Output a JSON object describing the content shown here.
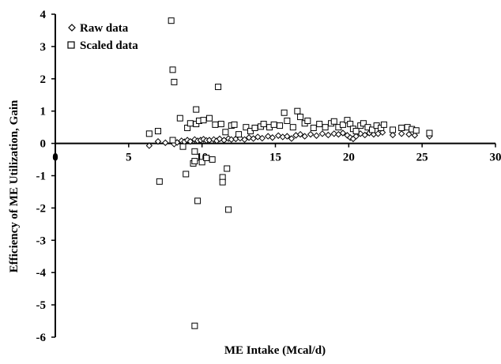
{
  "chart_data": {
    "type": "scatter",
    "xlabel": "ME Intake (Mcal/d)",
    "ylabel": "Efficiency of ME Utilization, Gain",
    "xlim": [
      0,
      30
    ],
    "ylim": [
      -6,
      4
    ],
    "x_ticks": [
      0,
      5,
      10,
      15,
      20,
      25,
      30
    ],
    "y_ticks": [
      4,
      3,
      2,
      1,
      0,
      -1,
      -2,
      -3,
      -4,
      -5,
      -6
    ],
    "grid": false,
    "legend_position": "top-left",
    "series": [
      {
        "name": "Raw data",
        "marker": "diamond",
        "color": "#000000",
        "points": [
          [
            6.4,
            -0.07
          ],
          [
            7.0,
            0.06
          ],
          [
            7.5,
            0.02
          ],
          [
            8.0,
            0.05
          ],
          [
            8.1,
            -0.02
          ],
          [
            8.3,
            0.03
          ],
          [
            8.6,
            0.08
          ],
          [
            8.8,
            0.05
          ],
          [
            9.0,
            0.1
          ],
          [
            9.2,
            0.06
          ],
          [
            9.5,
            0.12
          ],
          [
            9.7,
            0.08
          ],
          [
            9.9,
            0.1
          ],
          [
            10.1,
            0.13
          ],
          [
            10.3,
            0.09
          ],
          [
            10.5,
            0.1
          ],
          [
            10.8,
            0.12
          ],
          [
            11.0,
            0.08
          ],
          [
            11.2,
            0.14
          ],
          [
            11.5,
            0.1
          ],
          [
            11.8,
            0.15
          ],
          [
            12.0,
            0.12
          ],
          [
            12.3,
            0.14
          ],
          [
            12.6,
            0.16
          ],
          [
            12.9,
            0.12
          ],
          [
            13.2,
            0.18
          ],
          [
            13.5,
            0.15
          ],
          [
            13.8,
            0.2
          ],
          [
            14.1,
            0.16
          ],
          [
            14.5,
            0.22
          ],
          [
            14.8,
            0.18
          ],
          [
            15.2,
            0.24
          ],
          [
            15.5,
            0.2
          ],
          [
            15.8,
            0.22
          ],
          [
            16.1,
            0.15
          ],
          [
            16.4,
            0.25
          ],
          [
            16.7,
            0.28
          ],
          [
            17.0,
            0.22
          ],
          [
            17.4,
            0.28
          ],
          [
            17.8,
            0.24
          ],
          [
            18.2,
            0.3
          ],
          [
            18.6,
            0.26
          ],
          [
            19.0,
            0.3
          ],
          [
            19.3,
            0.28
          ],
          [
            19.6,
            0.32
          ],
          [
            19.9,
            0.25
          ],
          [
            20.1,
            0.18
          ],
          [
            20.3,
            0.14
          ],
          [
            20.5,
            0.22
          ],
          [
            20.8,
            0.3
          ],
          [
            21.1,
            0.26
          ],
          [
            21.4,
            0.32
          ],
          [
            21.7,
            0.28
          ],
          [
            22.0,
            0.3
          ],
          [
            22.3,
            0.34
          ],
          [
            23.0,
            0.26
          ],
          [
            23.6,
            0.3
          ],
          [
            24.1,
            0.28
          ],
          [
            24.5,
            0.25
          ],
          [
            25.5,
            0.22
          ]
        ]
      },
      {
        "name": "Scaled data",
        "marker": "square",
        "color": "#000000",
        "points": [
          [
            6.4,
            0.3
          ],
          [
            7.0,
            0.38
          ],
          [
            7.1,
            -1.18
          ],
          [
            7.9,
            3.8
          ],
          [
            8.0,
            2.28
          ],
          [
            8.1,
            1.9
          ],
          [
            8.0,
            0.1
          ],
          [
            8.5,
            0.78
          ],
          [
            8.7,
            -0.1
          ],
          [
            8.9,
            -0.95
          ],
          [
            9.0,
            0.48
          ],
          [
            9.2,
            0.62
          ],
          [
            9.4,
            -0.62
          ],
          [
            9.5,
            -0.25
          ],
          [
            9.5,
            -0.55
          ],
          [
            9.6,
            1.05
          ],
          [
            9.6,
            0.6
          ],
          [
            9.7,
            -1.78
          ],
          [
            9.5,
            -5.65
          ],
          [
            9.8,
            0.7
          ],
          [
            10.0,
            -0.58
          ],
          [
            10.1,
            0.72
          ],
          [
            10.3,
            -0.45
          ],
          [
            10.5,
            0.78
          ],
          [
            10.7,
            -0.5
          ],
          [
            10.9,
            0.58
          ],
          [
            11.1,
            1.75
          ],
          [
            11.3,
            0.6
          ],
          [
            11.4,
            -1.05
          ],
          [
            11.4,
            -1.2
          ],
          [
            11.6,
            0.35
          ],
          [
            11.7,
            -0.78
          ],
          [
            11.8,
            -2.05
          ],
          [
            12.0,
            0.55
          ],
          [
            12.2,
            0.58
          ],
          [
            12.5,
            0.28
          ],
          [
            13.0,
            0.5
          ],
          [
            13.3,
            0.38
          ],
          [
            13.6,
            0.48
          ],
          [
            14.0,
            0.52
          ],
          [
            14.2,
            0.6
          ],
          [
            14.6,
            0.5
          ],
          [
            14.9,
            0.58
          ],
          [
            15.3,
            0.55
          ],
          [
            15.6,
            0.95
          ],
          [
            15.8,
            0.7
          ],
          [
            16.2,
            0.5
          ],
          [
            16.5,
            1.0
          ],
          [
            16.7,
            0.82
          ],
          [
            17.0,
            0.62
          ],
          [
            17.2,
            0.7
          ],
          [
            17.6,
            0.48
          ],
          [
            18.0,
            0.6
          ],
          [
            18.4,
            0.5
          ],
          [
            18.8,
            0.62
          ],
          [
            19.0,
            0.68
          ],
          [
            19.3,
            0.5
          ],
          [
            19.6,
            0.58
          ],
          [
            19.9,
            0.72
          ],
          [
            20.1,
            0.6
          ],
          [
            20.3,
            0.45
          ],
          [
            20.5,
            0.38
          ],
          [
            20.8,
            0.55
          ],
          [
            21.0,
            0.62
          ],
          [
            21.3,
            0.5
          ],
          [
            21.6,
            0.42
          ],
          [
            21.9,
            0.55
          ],
          [
            22.2,
            0.48
          ],
          [
            22.4,
            0.58
          ],
          [
            23.0,
            0.42
          ],
          [
            23.6,
            0.48
          ],
          [
            24.0,
            0.5
          ],
          [
            24.3,
            0.44
          ],
          [
            24.6,
            0.4
          ],
          [
            25.5,
            0.32
          ]
        ]
      }
    ]
  }
}
